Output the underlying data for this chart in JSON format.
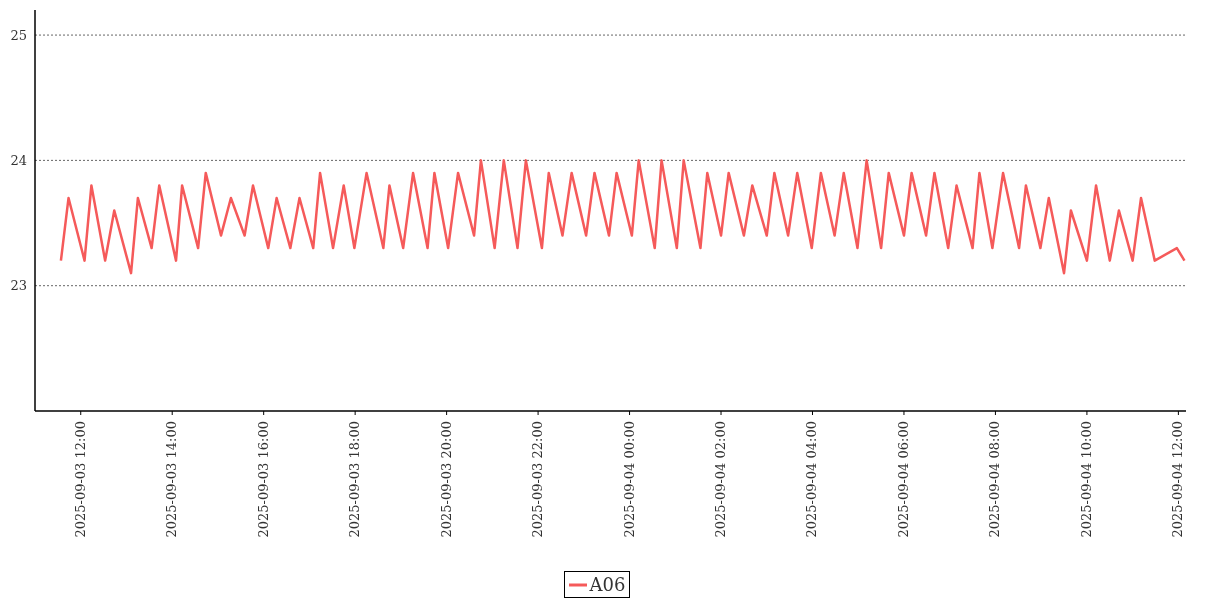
{
  "chart_data": {
    "type": "line",
    "x": [
      "2025-09-03T11:34",
      "2025-09-03T11:44",
      "2025-09-03T12:05",
      "2025-09-03T12:14",
      "2025-09-03T12:32",
      "2025-09-03T12:44",
      "2025-09-03T13:06",
      "2025-09-03T13:15",
      "2025-09-03T13:33",
      "2025-09-03T13:43",
      "2025-09-03T14:05",
      "2025-09-03T14:13",
      "2025-09-03T14:34",
      "2025-09-03T14:44",
      "2025-09-03T15:04",
      "2025-09-03T15:17",
      "2025-09-03T15:35",
      "2025-09-03T15:46",
      "2025-09-03T16:06",
      "2025-09-03T16:17",
      "2025-09-03T16:35",
      "2025-09-03T16:47",
      "2025-09-03T17:05",
      "2025-09-03T17:14",
      "2025-09-03T17:31",
      "2025-09-03T17:45",
      "2025-09-03T17:59",
      "2025-09-03T18:15",
      "2025-09-03T18:37",
      "2025-09-03T18:45",
      "2025-09-03T19:03",
      "2025-09-03T19:16",
      "2025-09-03T19:35",
      "2025-09-03T19:44",
      "2025-09-03T20:02",
      "2025-09-03T20:15",
      "2025-09-03T20:36",
      "2025-09-03T20:45",
      "2025-09-03T21:03",
      "2025-09-03T21:15",
      "2025-09-03T21:33",
      "2025-09-03T21:44",
      "2025-09-03T22:05",
      "2025-09-03T22:14",
      "2025-09-03T22:32",
      "2025-09-03T22:44",
      "2025-09-03T23:03",
      "2025-09-03T23:14",
      "2025-09-03T23:33",
      "2025-09-03T23:43",
      "2025-09-04T00:03",
      "2025-09-04T00:12",
      "2025-09-04T00:33",
      "2025-09-04T00:42",
      "2025-09-04T01:02",
      "2025-09-04T01:11",
      "2025-09-04T01:33",
      "2025-09-04T01:42",
      "2025-09-04T02:00",
      "2025-09-04T02:10",
      "2025-09-04T02:30",
      "2025-09-04T02:41",
      "2025-09-04T03:00",
      "2025-09-04T03:10",
      "2025-09-04T03:28",
      "2025-09-04T03:40",
      "2025-09-04T03:59",
      "2025-09-04T04:11",
      "2025-09-04T04:29",
      "2025-09-04T04:41",
      "2025-09-04T04:59",
      "2025-09-04T05:11",
      "2025-09-04T05:30",
      "2025-09-04T05:40",
      "2025-09-04T06:00",
      "2025-09-04T06:10",
      "2025-09-04T06:29",
      "2025-09-04T06:40",
      "2025-09-04T06:58",
      "2025-09-04T07:09",
      "2025-09-04T07:30",
      "2025-09-04T07:39",
      "2025-09-04T07:56",
      "2025-09-04T08:10",
      "2025-09-04T08:31",
      "2025-09-04T08:40",
      "2025-09-04T08:59",
      "2025-09-04T09:10",
      "2025-09-04T09:30",
      "2025-09-04T09:39",
      "2025-09-04T10:00",
      "2025-09-04T10:12",
      "2025-09-04T10:30",
      "2025-09-04T10:42",
      "2025-09-04T11:00",
      "2025-09-04T11:11",
      "2025-09-04T11:29",
      "2025-09-04T11:58",
      "2025-09-04T12:08"
    ],
    "series": [
      {
        "name": "A06",
        "color": "#f55a5a",
        "values": [
          23.2,
          23.7,
          23.2,
          23.8,
          23.2,
          23.6,
          23.1,
          23.7,
          23.3,
          23.8,
          23.2,
          23.8,
          23.3,
          23.9,
          23.4,
          23.7,
          23.4,
          23.8,
          23.3,
          23.7,
          23.3,
          23.7,
          23.3,
          23.9,
          23.3,
          23.8,
          23.3,
          23.9,
          23.3,
          23.8,
          23.3,
          23.9,
          23.3,
          23.9,
          23.3,
          23.9,
          23.4,
          24.0,
          23.3,
          24.0,
          23.3,
          24.0,
          23.3,
          23.9,
          23.4,
          23.9,
          23.4,
          23.9,
          23.4,
          23.9,
          23.4,
          24.0,
          23.3,
          24.0,
          23.3,
          24.0,
          23.3,
          23.9,
          23.4,
          23.9,
          23.4,
          23.8,
          23.4,
          23.9,
          23.4,
          23.9,
          23.3,
          23.9,
          23.4,
          23.9,
          23.3,
          24.0,
          23.3,
          23.9,
          23.4,
          23.9,
          23.4,
          23.9,
          23.3,
          23.8,
          23.3,
          23.9,
          23.3,
          23.9,
          23.3,
          23.8,
          23.3,
          23.7,
          23.1,
          23.6,
          23.2,
          23.8,
          23.2,
          23.6,
          23.2,
          23.7,
          23.2,
          23.3,
          23.2
        ]
      }
    ],
    "xlim": [
      "2025-09-03T11:00",
      "2025-09-04T12:10"
    ],
    "xticks": [
      {
        "value": "2025-09-03T12:00",
        "label": "2025-09-03 12:00"
      },
      {
        "value": "2025-09-03T14:00",
        "label": "2025-09-03 14:00"
      },
      {
        "value": "2025-09-03T16:00",
        "label": "2025-09-03 16:00"
      },
      {
        "value": "2025-09-03T18:00",
        "label": "2025-09-03 18:00"
      },
      {
        "value": "2025-09-03T20:00",
        "label": "2025-09-03 20:00"
      },
      {
        "value": "2025-09-03T22:00",
        "label": "2025-09-03 22:00"
      },
      {
        "value": "2025-09-04T00:00",
        "label": "2025-09-04 00:00"
      },
      {
        "value": "2025-09-04T02:00",
        "label": "2025-09-04 02:00"
      },
      {
        "value": "2025-09-04T04:00",
        "label": "2025-09-04 04:00"
      },
      {
        "value": "2025-09-04T06:00",
        "label": "2025-09-04 06:00"
      },
      {
        "value": "2025-09-04T08:00",
        "label": "2025-09-04 08:00"
      },
      {
        "value": "2025-09-04T10:00",
        "label": "2025-09-04 10:00"
      },
      {
        "value": "2025-09-04T12:00",
        "label": "2025-09-04 12:00"
      }
    ],
    "ylim": [
      22,
      25.2
    ],
    "yticks": [
      23,
      24,
      25
    ],
    "grid": "y",
    "legend": "bottom",
    "marker": "none",
    "line_style": "solid"
  }
}
